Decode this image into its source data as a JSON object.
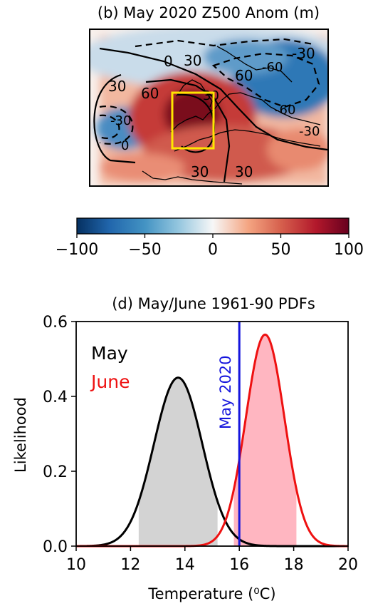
{
  "chart_data": [
    {
      "type": "heatmap",
      "title": "(b) May 2020 Z500 Anom (m)",
      "colorbar": {
        "ticks": [
          "−100",
          "−50",
          "0",
          "50",
          "100"
        ],
        "range": [
          -100,
          100
        ],
        "colormap": "RdBu_r"
      },
      "contour_labels": [
        "0",
        "30",
        "-30",
        "60",
        "-60",
        "30",
        "60",
        "30",
        "-30",
        "0",
        "30",
        "30",
        "-30",
        "-60"
      ],
      "highlight_box_color": "#ffe600"
    },
    {
      "type": "area",
      "title": "(d) May/June 1961-90 PDFs",
      "xlabel": "Temperature (⁰C)",
      "ylabel": "Likelihood",
      "xlim": [
        10,
        20
      ],
      "ylim": [
        0,
        0.6
      ],
      "xticks": [
        "10",
        "12",
        "14",
        "16",
        "18",
        "20"
      ],
      "yticks": [
        "0.0",
        "0.2",
        "0.4",
        "0.6"
      ],
      "legend": [
        {
          "label": "May",
          "color": "#000000"
        },
        {
          "label": "June",
          "color": "#ee1111"
        }
      ],
      "series": [
        {
          "name": "May",
          "mean": 13.75,
          "std": 0.89,
          "peak": 0.45,
          "color": "#000000",
          "fill": "#d3d3d3",
          "fill_range": [
            12.3,
            15.2
          ]
        },
        {
          "name": "June",
          "mean": 16.95,
          "std": 0.71,
          "peak": 0.565,
          "color": "#ee1111",
          "fill": "#ffb6c1",
          "fill_range": [
            15.8,
            18.1
          ]
        }
      ],
      "vline": {
        "x": 16.0,
        "label": "May 2020",
        "color": "#1515dd"
      }
    }
  ]
}
